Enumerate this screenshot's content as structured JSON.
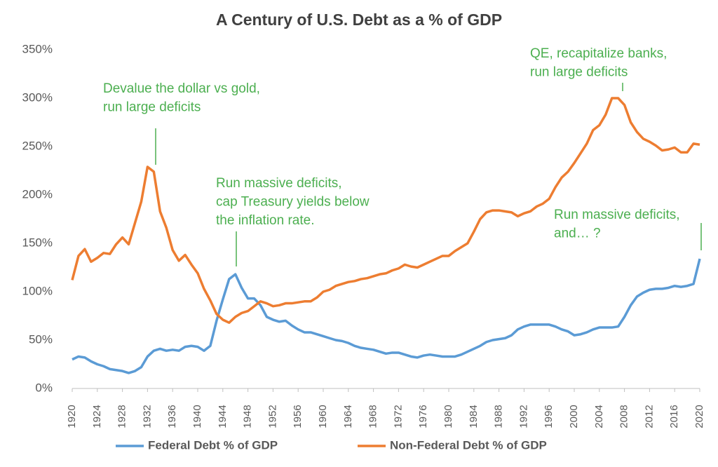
{
  "chart_data": {
    "type": "line",
    "title": "A Century of U.S. Debt as a % of GDP",
    "x": [
      1920,
      1921,
      1922,
      1923,
      1924,
      1925,
      1926,
      1927,
      1928,
      1929,
      1930,
      1931,
      1932,
      1933,
      1934,
      1935,
      1936,
      1937,
      1938,
      1939,
      1940,
      1941,
      1942,
      1943,
      1944,
      1945,
      1946,
      1947,
      1948,
      1949,
      1950,
      1951,
      1952,
      1953,
      1954,
      1955,
      1956,
      1957,
      1958,
      1959,
      1960,
      1961,
      1962,
      1963,
      1964,
      1965,
      1966,
      1967,
      1968,
      1969,
      1970,
      1971,
      1972,
      1973,
      1974,
      1975,
      1976,
      1977,
      1978,
      1979,
      1980,
      1981,
      1982,
      1983,
      1984,
      1985,
      1986,
      1987,
      1988,
      1989,
      1990,
      1991,
      1992,
      1993,
      1994,
      1995,
      1996,
      1997,
      1998,
      1999,
      2000,
      2001,
      2002,
      2003,
      2004,
      2005,
      2006,
      2007,
      2008,
      2009,
      2010,
      2011,
      2012,
      2013,
      2014,
      2015,
      2016,
      2017,
      2018,
      2019,
      2020
    ],
    "series": [
      {
        "name": "Federal Debt % of GDP",
        "color": "#5b9bd5",
        "values": [
          30,
          33,
          32,
          28,
          25,
          23,
          20,
          19,
          18,
          16,
          18,
          22,
          33,
          39,
          41,
          39,
          40,
          39,
          43,
          44,
          43,
          39,
          44,
          70,
          92,
          113,
          118,
          104,
          93,
          93,
          86,
          74,
          71,
          69,
          70,
          65,
          61,
          58,
          58,
          56,
          54,
          52,
          50,
          49,
          47,
          44,
          42,
          41,
          40,
          38,
          36,
          37,
          37,
          35,
          33,
          32,
          34,
          35,
          34,
          33,
          33,
          33,
          35,
          38,
          41,
          44,
          48,
          50,
          51,
          52,
          55,
          61,
          64,
          66,
          66,
          66,
          66,
          64,
          61,
          59,
          55,
          56,
          58,
          61,
          63,
          63,
          63,
          64,
          74,
          86,
          95,
          99,
          102,
          103,
          103,
          104,
          106,
          105,
          106,
          108,
          134
        ]
      },
      {
        "name": "Non-Federal Debt % of GDP",
        "color": "#ed7d31",
        "values": [
          112,
          137,
          144,
          131,
          135,
          140,
          139,
          149,
          156,
          149,
          171,
          193,
          229,
          224,
          183,
          166,
          143,
          132,
          138,
          128,
          119,
          103,
          91,
          77,
          71,
          68,
          74,
          78,
          80,
          85,
          90,
          88,
          85,
          86,
          88,
          88,
          89,
          90,
          90,
          94,
          100,
          102,
          106,
          108,
          110,
          111,
          113,
          114,
          116,
          118,
          119,
          122,
          124,
          128,
          126,
          125,
          128,
          131,
          134,
          137,
          137,
          142,
          146,
          150,
          162,
          175,
          182,
          184,
          184,
          183,
          182,
          178,
          181,
          183,
          188,
          191,
          196,
          208,
          218,
          224,
          233,
          243,
          253,
          267,
          272,
          283,
          300,
          300,
          293,
          275,
          265,
          258,
          255,
          251,
          246,
          247,
          249,
          244,
          244,
          253,
          252
        ]
      }
    ],
    "xlim": [
      1920,
      2020
    ],
    "xticks": [
      1920,
      1924,
      1928,
      1932,
      1936,
      1940,
      1944,
      1948,
      1952,
      1956,
      1960,
      1964,
      1968,
      1972,
      1976,
      1980,
      1984,
      1988,
      1992,
      1996,
      2000,
      2004,
      2008,
      2012,
      2016,
      2020
    ],
    "ylim": [
      0,
      350
    ],
    "yticks": [
      {
        "value": 0,
        "label": "0%"
      },
      {
        "value": 50,
        "label": "50%"
      },
      {
        "value": 100,
        "label": "100%"
      },
      {
        "value": 150,
        "label": "150%"
      },
      {
        "value": 200,
        "label": "200%"
      },
      {
        "value": 250,
        "label": "250%"
      },
      {
        "value": 300,
        "label": "300%"
      },
      {
        "value": 350,
        "label": "350%"
      }
    ],
    "grid": false,
    "legend": "bottom",
    "annotations": [
      [
        "Devalue the dollar vs gold,",
        "run large deficits"
      ],
      [
        "Run massive deficits,",
        "cap Treasury yields below",
        "the inflation rate."
      ],
      [
        "QE, recapitalize banks,",
        "run large deficits"
      ],
      [
        "Run massive deficits,",
        "and… ?"
      ]
    ]
  }
}
